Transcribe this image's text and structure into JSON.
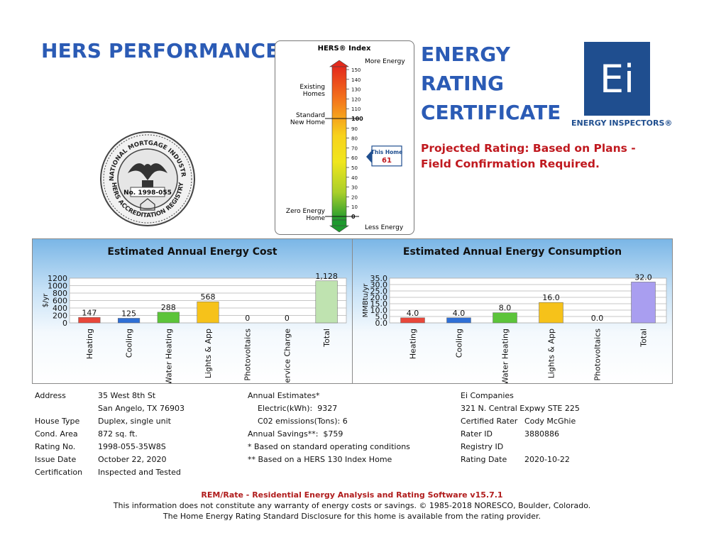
{
  "header": {
    "hers_title": "HERS PERFORMANCE",
    "cert_line1": "ENERGY",
    "cert_line2": "RATING",
    "cert_line3": "CERTIFICATE",
    "logo_text": "Ei",
    "logo_caption": "ENERGY INSPECTORS®",
    "projected": "Projected Rating: Based on Plans - Field Confirmation Required."
  },
  "seal": {
    "top_text": "NATIONAL MORTGAGE INDUSTRY",
    "bottom_text": "HERS ACCREDITATION REGISTRY",
    "number": "No. 1998-055"
  },
  "gauge": {
    "title": "HERS® Index",
    "more": "More Energy",
    "less": "Less Energy",
    "existing": [
      "Existing",
      "Homes"
    ],
    "standard": [
      "Standard",
      "New Home"
    ],
    "zero": [
      "Zero Energy",
      "Home"
    ],
    "ticks": [
      "150",
      "140",
      "130",
      "120",
      "110",
      "100",
      "90",
      "80",
      "70",
      "60",
      "50",
      "40",
      "30",
      "20",
      "10",
      "0"
    ],
    "this_home_label": "This Home",
    "this_home_value": "61",
    "this_home_score": 61,
    "colors": {
      "high": "#e8321e",
      "mid": "#f6d41a",
      "low": "#1f9a2e"
    }
  },
  "chart_data": [
    {
      "type": "bar",
      "title": "Estimated Annual Energy Cost",
      "ylabel": "$/yr",
      "categories": [
        "Heating",
        "Cooling",
        "Water Heating",
        "Lights & App",
        "Photovoltaics",
        "Service Charge",
        "Total"
      ],
      "values": [
        147,
        125,
        288,
        568,
        0,
        0,
        1128
      ],
      "labels": [
        "147",
        "125",
        "288",
        "568",
        "0",
        "0",
        "1,128"
      ],
      "yticks": [
        "0",
        "200",
        "400",
        "600",
        "800",
        "1000",
        "1200"
      ],
      "ylim": [
        0,
        1200
      ],
      "colors": [
        "#e8473a",
        "#2e6fd6",
        "#5cc43a",
        "#f6c21a",
        "#888888",
        "#888888",
        "#bfe3b0"
      ]
    },
    {
      "type": "bar",
      "title": "Estimated Annual Energy Consumption",
      "ylabel": "MMBtu/yr",
      "categories": [
        "Heating",
        "Cooling",
        "Water Heating",
        "Lights & App",
        "Photovoltaics",
        "Total"
      ],
      "values": [
        4.0,
        4.0,
        8.0,
        16.0,
        0.0,
        32.0
      ],
      "labels": [
        "4.0",
        "4.0",
        "8.0",
        "16.0",
        "0.0",
        "32.0"
      ],
      "yticks": [
        "0.0",
        "5.0",
        "10.0",
        "15.0",
        "20.0",
        "25.0",
        "30.0",
        "35.0"
      ],
      "ylim": [
        0,
        35
      ],
      "colors": [
        "#e8473a",
        "#2e6fd6",
        "#5cc43a",
        "#f6c21a",
        "#888888",
        "#a99ef0"
      ]
    }
  ],
  "info": {
    "col1": [
      {
        "k": "Address",
        "v": "35 West 8th St"
      },
      {
        "k": "",
        "v": "San Angelo, TX 76903"
      },
      {
        "k": "House Type",
        "v": "Duplex, single unit"
      },
      {
        "k": "Cond. Area",
        "v": "872 sq. ft."
      },
      {
        "k": "Rating No.",
        "v": "1998-055-35W8S"
      },
      {
        "k": "Issue Date",
        "v": "October 22, 2020"
      },
      {
        "k": "Certification",
        "v": "Inspected and Tested"
      }
    ],
    "col2": [
      "Annual Estimates*",
      "    Electric(kWh):  9327",
      "    C02 emissions(Tons): 6",
      "Annual Savings**:  $759",
      "* Based on standard operating conditions",
      "** Based on a HERS 130 Index Home"
    ],
    "col3": [
      {
        "k": "Ei Companies",
        "v": ""
      },
      {
        "k": "321 N. Central Expwy STE 225",
        "v": ""
      },
      {
        "k": "Certified Rater",
        "v": "Cody McGhie"
      },
      {
        "k": "Rater ID",
        "v": "3880886"
      },
      {
        "k": "Registry ID",
        "v": ""
      },
      {
        "k": "Rating Date",
        "v": "2020-10-22"
      }
    ]
  },
  "footer": {
    "line1": "REM/Rate - Residential Energy Analysis and Rating Software v15.7.1",
    "line2": "This information does not constitute any warranty of energy costs or savings. © 1985-2018 NORESCO, Boulder, Colorado.",
    "line3": "The Home Energy Rating Standard Disclosure for this home is available from the rating provider."
  }
}
